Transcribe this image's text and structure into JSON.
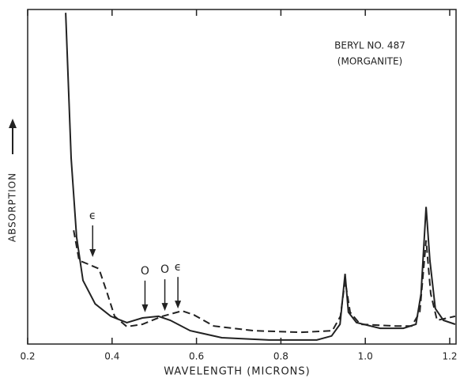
{
  "chart_data": {
    "type": "line",
    "xlabel": "WAVELENGTH (MICRONS)",
    "ylabel": "ABSORPTION",
    "annotations_text": [
      "BERYL NO. 487",
      "(MORGANITE)"
    ],
    "xlim": [
      0.2,
      1.215
    ],
    "ylim": [
      0,
      100
    ],
    "xticks": [
      0.2,
      0.4,
      0.6,
      0.8,
      {
        "value": 1,
        "label": "1.0"
      },
      1.2
    ],
    "series": [
      {
        "color": "#222222",
        "dashed": false,
        "x": [
          0.29,
          0.303,
          0.316,
          0.331,
          0.36,
          0.397,
          0.435,
          0.472,
          0.51,
          0.538,
          0.585,
          0.66,
          0.772,
          0.885,
          0.92,
          0.94,
          0.952,
          0.96,
          0.979,
          1.035,
          1.09,
          1.12,
          1.132,
          1.144,
          1.153,
          1.166,
          1.185,
          1.213
        ],
        "values": [
          99,
          55.6,
          32,
          19,
          12,
          8.3,
          6.4,
          7.8,
          8.3,
          7.1,
          4,
          1.9,
          1.2,
          1.2,
          2.4,
          5.9,
          21,
          9.5,
          6.4,
          4.7,
          4.7,
          5.9,
          15,
          41,
          25,
          10.6,
          7.1,
          5.9
        ]
      },
      {
        "color": "#222222",
        "dashed": true,
        "x": [
          0.309,
          0.322,
          0.341,
          0.369,
          0.388,
          0.406,
          0.435,
          0.472,
          0.519,
          0.566,
          0.594,
          0.641,
          0.735,
          0.847,
          0.922,
          0.941,
          0.952,
          0.964,
          0.988,
          1.072,
          1.11,
          1.129,
          1.144,
          1.155,
          1.17,
          1.213
        ],
        "values": [
          34,
          25,
          24,
          22.5,
          15.4,
          8.3,
          5.2,
          5.9,
          8.3,
          9.9,
          8.7,
          5.4,
          4,
          3.5,
          4,
          8.3,
          19,
          9.5,
          5.9,
          5.4,
          5.4,
          9.5,
          31,
          15,
          7.1,
          8.3
        ]
      }
    ],
    "annotations": [
      {
        "text": "ϵ",
        "x": 0.354,
        "y": 26
      },
      {
        "text": "O",
        "x": 0.478,
        "y": 9.5
      },
      {
        "text": "O",
        "x": 0.525,
        "y": 9.9
      },
      {
        "text": "ϵ",
        "x": 0.556,
        "y": 10.6
      }
    ]
  }
}
